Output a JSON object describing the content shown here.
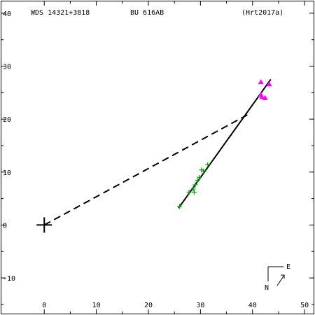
{
  "header": {
    "wds_id": "WDS 14321+3818",
    "discoverer": "BU  616AB",
    "reference": "(Hrt2017a)"
  },
  "compass": {
    "east_label": "E",
    "north_label": "N"
  },
  "chart_data": {
    "type": "scatter",
    "title": "",
    "xlabel": "",
    "ylabel": "",
    "xlim": [
      -8.5,
      52
    ],
    "ylim": [
      -17,
      42.5
    ],
    "x_ticks": [
      0,
      10,
      20,
      30,
      40,
      50
    ],
    "y_ticks": [
      -10,
      0,
      10,
      20,
      30,
      40
    ],
    "grid": false,
    "primary_star": {
      "x": 0,
      "y": 0,
      "marker": "cross"
    },
    "orbit_line": {
      "from": [
        25.8,
        3.2
      ],
      "to": [
        43.5,
        27.5
      ]
    },
    "dashed_line": {
      "from": [
        0,
        0
      ],
      "to": [
        39.0,
        20.8
      ]
    },
    "series": [
      {
        "marker": "plus",
        "color": "#00a000",
        "points": [
          [
            26.0,
            3.5
          ],
          [
            27.8,
            6.2
          ],
          [
            28.6,
            6.8
          ],
          [
            29.0,
            7.6
          ],
          [
            29.4,
            8.4
          ],
          [
            29.8,
            9.0
          ],
          [
            28.8,
            6.2
          ],
          [
            30.6,
            10.2
          ],
          [
            31.4,
            11.4
          ],
          [
            30.2,
            10.4
          ]
        ]
      },
      {
        "marker": "triangle",
        "color": "#ff00ff",
        "points": [
          [
            41.6,
            27.0
          ],
          [
            43.2,
            26.6
          ],
          [
            41.8,
            24.2
          ],
          [
            42.4,
            24.0
          ],
          [
            41.6,
            24.6
          ]
        ]
      }
    ]
  }
}
